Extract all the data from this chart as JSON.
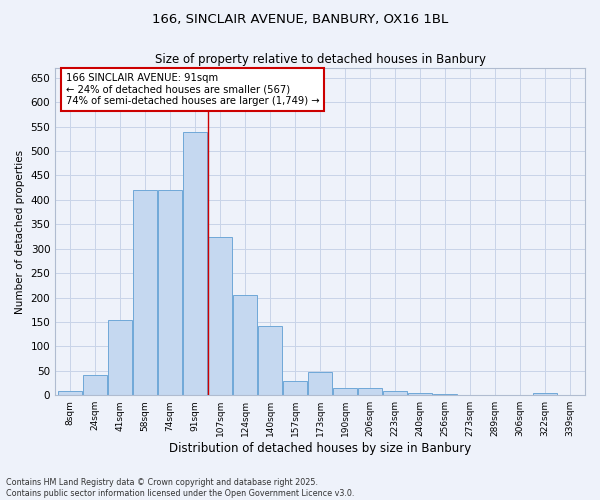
{
  "title1": "166, SINCLAIR AVENUE, BANBURY, OX16 1BL",
  "title2": "Size of property relative to detached houses in Banbury",
  "xlabel": "Distribution of detached houses by size in Banbury",
  "ylabel": "Number of detached properties",
  "bar_labels": [
    "8sqm",
    "24sqm",
    "41sqm",
    "58sqm",
    "74sqm",
    "91sqm",
    "107sqm",
    "124sqm",
    "140sqm",
    "157sqm",
    "173sqm",
    "190sqm",
    "206sqm",
    "223sqm",
    "240sqm",
    "256sqm",
    "273sqm",
    "289sqm",
    "306sqm",
    "322sqm",
    "339sqm"
  ],
  "bar_values": [
    8,
    42,
    155,
    420,
    420,
    540,
    325,
    205,
    142,
    30,
    48,
    14,
    14,
    8,
    5,
    2,
    1,
    1,
    0,
    5,
    1
  ],
  "bar_color": "#c5d8f0",
  "bar_edge_color": "#6fa8d8",
  "grid_color": "#c8d4e8",
  "background_color": "#eef2fa",
  "annotation_text": "166 SINCLAIR AVENUE: 91sqm\n← 24% of detached houses are smaller (567)\n74% of semi-detached houses are larger (1,749) →",
  "annotation_box_color": "#ffffff",
  "annotation_box_edge": "#cc0000",
  "vline_color": "#cc0000",
  "footer_text": "Contains HM Land Registry data © Crown copyright and database right 2025.\nContains public sector information licensed under the Open Government Licence v3.0.",
  "ylim": [
    0,
    670
  ],
  "yticks": [
    0,
    50,
    100,
    150,
    200,
    250,
    300,
    350,
    400,
    450,
    500,
    550,
    600,
    650
  ]
}
